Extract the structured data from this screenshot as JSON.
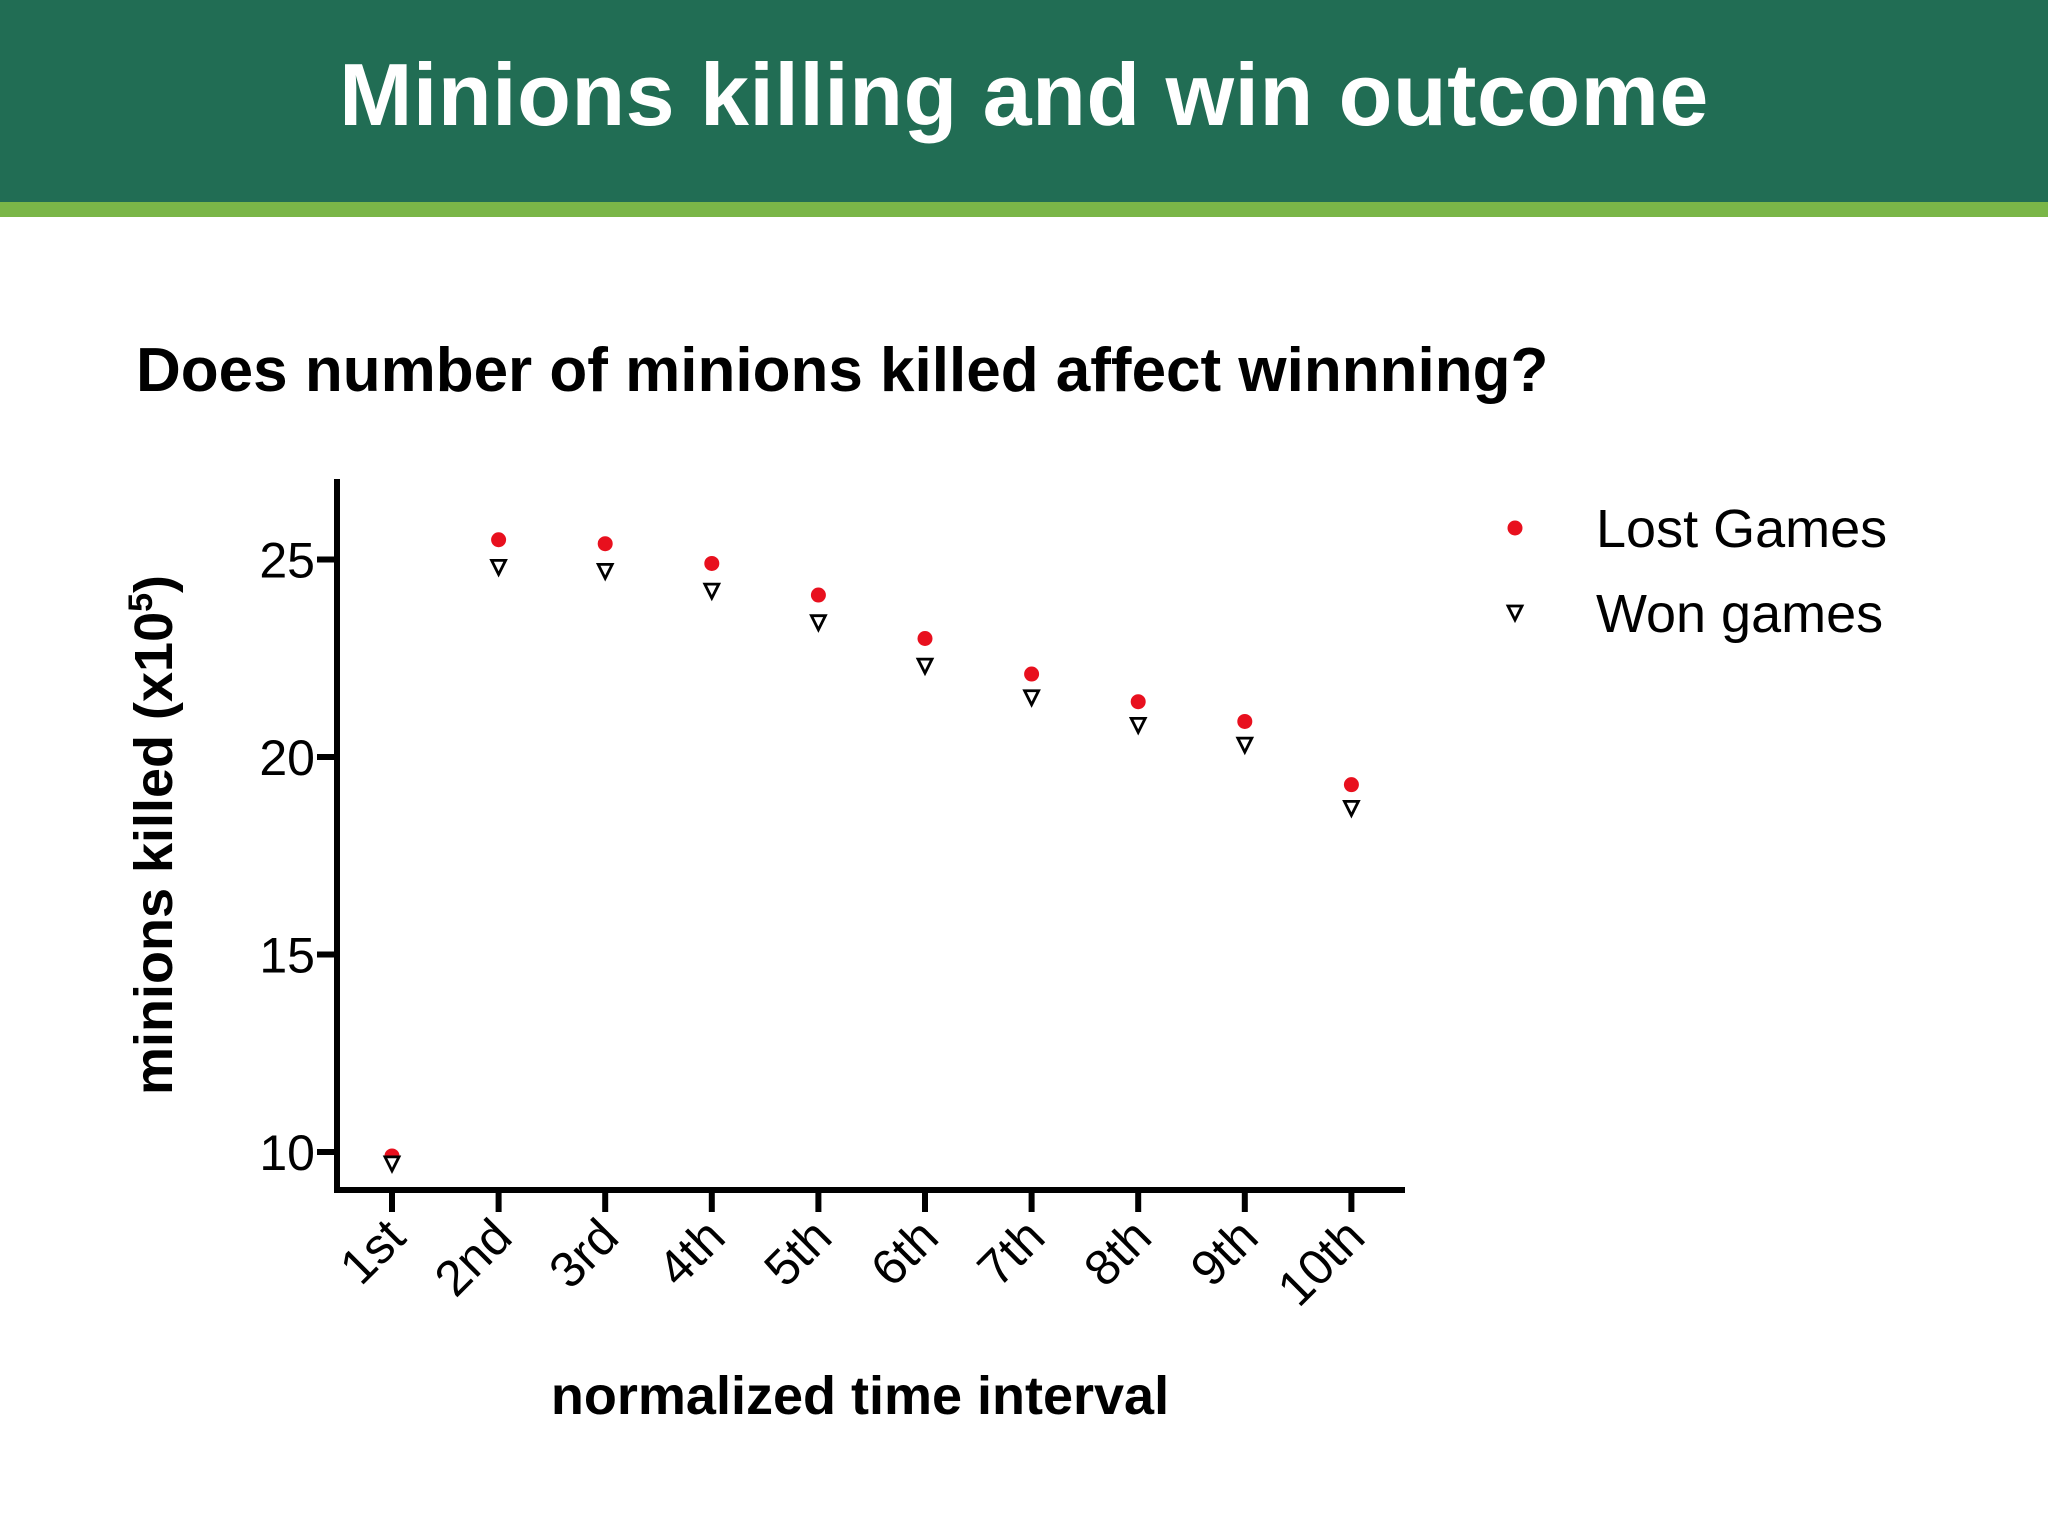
{
  "slide": {
    "title": "Minions killing and win outcome",
    "subtitle": "Does number of minions killed affect winnning?",
    "colors": {
      "banner": "#216d54",
      "stripe": "#7ab648",
      "lost": "#e8101e",
      "won": "#000000"
    }
  },
  "chart_data": {
    "type": "scatter",
    "title": "",
    "xlabel": "normalized time interval",
    "ylabel_prefix": "minions killed (x10",
    "ylabel_exponent": "5",
    "ylabel_suffix": ")",
    "categories": [
      "1st",
      "2nd",
      "3rd",
      "4th",
      "5th",
      "6th",
      "7th",
      "8th",
      "9th",
      "10th"
    ],
    "ylim": [
      9,
      27
    ],
    "yticks": [
      10,
      15,
      20,
      25
    ],
    "grid": false,
    "legend_position": "top-right",
    "series": [
      {
        "name": "Lost Games",
        "marker": "circle",
        "color": "#e8101e",
        "values": [
          9.9,
          25.5,
          25.4,
          24.9,
          24.1,
          23.0,
          22.1,
          21.4,
          20.9,
          19.3
        ]
      },
      {
        "name": "Won games",
        "marker": "triangle-down",
        "color": "#000000",
        "values": [
          9.7,
          24.8,
          24.7,
          24.2,
          23.4,
          22.3,
          21.5,
          20.8,
          20.3,
          18.7
        ]
      }
    ]
  }
}
